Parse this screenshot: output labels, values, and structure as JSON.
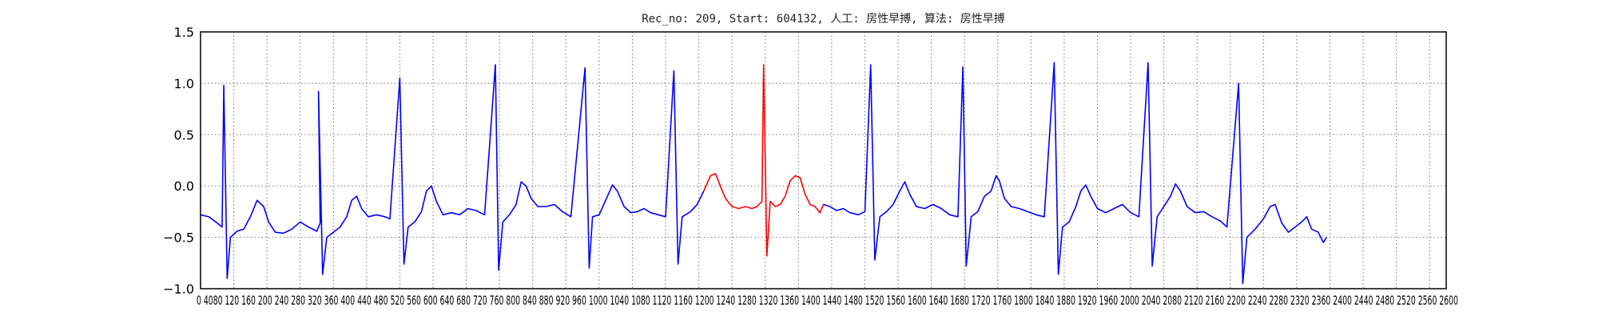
{
  "chart_data": {
    "type": "line",
    "title": "Rec_no: 209, Start: 604132, 人工: 房性早搏, 算法: 房性早搏",
    "xlabel": "",
    "ylabel": "",
    "xlim": [
      0,
      1500
    ],
    "ylim": [
      -1.0,
      1.5
    ],
    "grid": true,
    "grid_style": "dotted",
    "x_tick_step": 40,
    "y_ticks": [
      -1.0,
      -0.5,
      0.0,
      0.5,
      1.0,
      1.5
    ],
    "y_tick_labels": [
      "−1.0",
      "−0.5",
      "0.0",
      "0.5",
      "1.0",
      "1.5"
    ],
    "x_tick_text": "0 4080 120 160 200 240 280 320 360 400 440 480 520 560 600 640 680 720 760 800 840 880 920 960 1000 1040 1080 1120 1160 1200 1240 1280 1320 1360 1400 1440 1480 1520 1560 1600 1640 1680 1720 1760 1800 1840 1880 1920 1960 2000 2040 2080 2120 2160 2200 2240 2280 2320 2360 2400 2440 2480 2520 2560 2600",
    "series": [
      {
        "color": "#0000ff",
        "values": [
          [
            0,
            -0.28
          ],
          [
            10,
            -0.3
          ],
          [
            20,
            -0.36
          ],
          [
            26,
            -0.4
          ],
          [
            28,
            0.98
          ],
          [
            32,
            -0.9
          ],
          [
            36,
            -0.5
          ],
          [
            44,
            -0.44
          ],
          [
            52,
            -0.42
          ],
          [
            60,
            -0.3
          ],
          [
            68,
            -0.14
          ],
          [
            76,
            -0.2
          ],
          [
            82,
            -0.35
          ],
          [
            90,
            -0.45
          ],
          [
            100,
            -0.46
          ],
          [
            110,
            -0.42
          ],
          [
            120,
            -0.35
          ],
          [
            130,
            -0.4
          ],
          [
            140,
            -0.44
          ],
          [
            144,
            -0.36
          ],
          [
            142,
            0.92
          ],
          [
            147,
            -0.86
          ],
          [
            152,
            -0.5
          ],
          [
            160,
            -0.45
          ],
          [
            168,
            -0.4
          ],
          [
            176,
            -0.3
          ],
          [
            182,
            -0.14
          ],
          [
            188,
            -0.1
          ],
          [
            194,
            -0.22
          ],
          [
            202,
            -0.3
          ],
          [
            212,
            -0.28
          ],
          [
            222,
            -0.3
          ],
          [
            228,
            -0.32
          ],
          [
            240,
            1.05
          ],
          [
            245,
            -0.76
          ],
          [
            250,
            -0.4
          ],
          [
            258,
            -0.35
          ],
          [
            266,
            -0.25
          ],
          [
            272,
            -0.05
          ],
          [
            278,
            0.0
          ],
          [
            284,
            -0.15
          ],
          [
            292,
            -0.28
          ],
          [
            302,
            -0.26
          ],
          [
            312,
            -0.28
          ],
          [
            322,
            -0.22
          ],
          [
            332,
            -0.24
          ],
          [
            342,
            -0.28
          ],
          [
            355,
            1.18
          ],
          [
            359,
            -0.82
          ],
          [
            364,
            -0.35
          ],
          [
            372,
            -0.28
          ],
          [
            380,
            -0.18
          ],
          [
            386,
            0.04
          ],
          [
            392,
            0.0
          ],
          [
            398,
            -0.12
          ],
          [
            406,
            -0.2
          ],
          [
            416,
            -0.2
          ],
          [
            426,
            -0.18
          ],
          [
            436,
            -0.25
          ],
          [
            446,
            -0.3
          ],
          [
            463,
            1.15
          ],
          [
            468,
            -0.8
          ],
          [
            472,
            -0.3
          ],
          [
            480,
            -0.28
          ],
          [
            490,
            -0.1
          ],
          [
            496,
            0.01
          ],
          [
            502,
            -0.05
          ],
          [
            510,
            -0.2
          ],
          [
            518,
            -0.26
          ],
          [
            526,
            -0.25
          ],
          [
            534,
            -0.22
          ],
          [
            542,
            -0.26
          ],
          [
            560,
            -0.3
          ],
          [
            570,
            1.12
          ],
          [
            575,
            -0.76
          ],
          [
            580,
            -0.3
          ],
          [
            590,
            -0.25
          ],
          [
            598,
            -0.18
          ],
          [
            606,
            -0.05
          ]
        ]
      },
      {
        "color": "#ff0000",
        "values": [
          [
            606,
            -0.05
          ],
          [
            614,
            0.1
          ],
          [
            620,
            0.12
          ],
          [
            626,
            0.0
          ],
          [
            632,
            -0.12
          ],
          [
            640,
            -0.2
          ],
          [
            648,
            -0.22
          ],
          [
            656,
            -0.2
          ],
          [
            664,
            -0.22
          ],
          [
            670,
            -0.2
          ],
          [
            676,
            -0.15
          ],
          [
            678,
            1.18
          ],
          [
            682,
            -0.68
          ],
          [
            686,
            -0.15
          ],
          [
            692,
            -0.2
          ],
          [
            698,
            -0.18
          ],
          [
            704,
            -0.1
          ],
          [
            710,
            0.05
          ],
          [
            716,
            0.1
          ],
          [
            722,
            0.08
          ],
          [
            728,
            -0.08
          ],
          [
            734,
            -0.18
          ],
          [
            740,
            -0.2
          ],
          [
            746,
            -0.26
          ],
          [
            750,
            -0.18
          ]
        ]
      },
      {
        "color": "#0000ff",
        "values": [
          [
            750,
            -0.18
          ],
          [
            758,
            -0.2
          ],
          [
            766,
            -0.24
          ],
          [
            774,
            -0.22
          ],
          [
            782,
            -0.26
          ],
          [
            792,
            -0.28
          ],
          [
            800,
            -0.25
          ],
          [
            807,
            1.18
          ],
          [
            812,
            -0.72
          ],
          [
            818,
            -0.3
          ],
          [
            826,
            -0.25
          ],
          [
            834,
            -0.18
          ],
          [
            842,
            -0.05
          ],
          [
            848,
            0.04
          ],
          [
            854,
            -0.08
          ],
          [
            862,
            -0.2
          ],
          [
            872,
            -0.22
          ],
          [
            882,
            -0.18
          ],
          [
            892,
            -0.22
          ],
          [
            902,
            -0.28
          ],
          [
            912,
            -0.3
          ],
          [
            918,
            1.16
          ],
          [
            922,
            -0.78
          ],
          [
            928,
            -0.3
          ],
          [
            936,
            -0.25
          ],
          [
            944,
            -0.1
          ],
          [
            952,
            -0.05
          ],
          [
            958,
            0.1
          ],
          [
            962,
            0.05
          ],
          [
            968,
            -0.12
          ],
          [
            976,
            -0.2
          ],
          [
            986,
            -0.22
          ],
          [
            996,
            -0.25
          ],
          [
            1006,
            -0.28
          ],
          [
            1016,
            -0.3
          ],
          [
            1028,
            1.2
          ],
          [
            1033,
            -0.86
          ],
          [
            1038,
            -0.4
          ],
          [
            1046,
            -0.35
          ],
          [
            1054,
            -0.2
          ],
          [
            1060,
            -0.05
          ],
          [
            1066,
            0.01
          ],
          [
            1072,
            -0.1
          ],
          [
            1080,
            -0.22
          ],
          [
            1090,
            -0.26
          ],
          [
            1100,
            -0.22
          ],
          [
            1110,
            -0.18
          ],
          [
            1120,
            -0.26
          ],
          [
            1130,
            -0.3
          ],
          [
            1141,
            1.2
          ],
          [
            1146,
            -0.78
          ],
          [
            1152,
            -0.3
          ],
          [
            1160,
            -0.2
          ],
          [
            1168,
            -0.1
          ],
          [
            1174,
            0.02
          ],
          [
            1180,
            -0.05
          ],
          [
            1188,
            -0.2
          ],
          [
            1198,
            -0.26
          ],
          [
            1208,
            -0.25
          ],
          [
            1218,
            -0.3
          ],
          [
            1228,
            -0.34
          ],
          [
            1236,
            -0.4
          ],
          [
            1250,
            1.0
          ],
          [
            1255,
            -0.95
          ],
          [
            1260,
            -0.5
          ],
          [
            1270,
            -0.42
          ],
          [
            1280,
            -0.32
          ],
          [
            1288,
            -0.2
          ],
          [
            1294,
            -0.18
          ],
          [
            1302,
            -0.36
          ],
          [
            1310,
            -0.45
          ],
          [
            1318,
            -0.4
          ],
          [
            1326,
            -0.35
          ],
          [
            1332,
            -0.3
          ],
          [
            1338,
            -0.42
          ],
          [
            1346,
            -0.45
          ],
          [
            1352,
            -0.55
          ],
          [
            1356,
            -0.5
          ]
        ]
      }
    ]
  }
}
